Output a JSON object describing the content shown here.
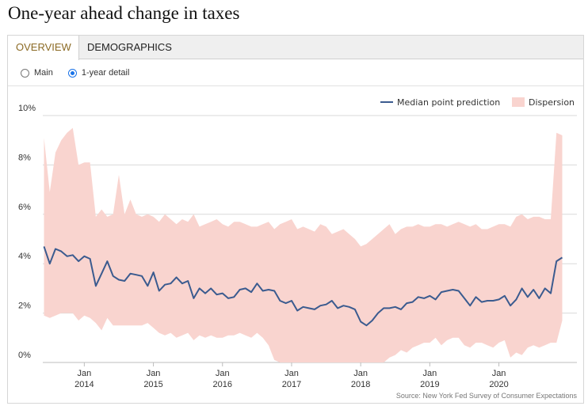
{
  "header": {
    "title": "One-year ahead change in taxes"
  },
  "tabs": [
    {
      "label": "OVERVIEW",
      "active": true
    },
    {
      "label": "DEMOGRAPHICS",
      "active": false
    }
  ],
  "radios": [
    {
      "label": "Main",
      "checked": false
    },
    {
      "label": "1-year detail",
      "checked": true
    }
  ],
  "colors": {
    "median": "#3b5b8f",
    "dispersion": "#f9d4cf",
    "accent_tab": "#8b6a24"
  },
  "chart_data": {
    "type": "area",
    "y_ticks": [
      "0%",
      "2%",
      "4%",
      "6%",
      "8%",
      "10%"
    ],
    "ylim": [
      0,
      10
    ],
    "grid": true,
    "x_month_labels": [
      "Jan",
      "Jan",
      "Jan",
      "Jan",
      "Jan",
      "Jan",
      "Jan"
    ],
    "x_year_labels": [
      "2014",
      "2015",
      "2016",
      "2017",
      "2018",
      "2019",
      "2020"
    ],
    "xlim": [
      "2013-06",
      "2021-03"
    ],
    "legend": {
      "position": "top-right",
      "median_label": "Median point prediction",
      "dispersion_label": "Dispersion"
    },
    "source": "Source: New York Fed Survey of Consumer Expectations",
    "start_month": "2013-06",
    "median": [
      4.7,
      4.0,
      4.6,
      4.5,
      4.3,
      4.35,
      4.1,
      4.3,
      4.2,
      3.1,
      3.6,
      4.1,
      3.5,
      3.35,
      3.3,
      3.6,
      3.55,
      3.5,
      3.1,
      3.65,
      2.9,
      3.15,
      3.2,
      3.45,
      3.2,
      3.3,
      2.6,
      3.0,
      2.8,
      3.0,
      2.75,
      2.8,
      2.6,
      2.65,
      2.95,
      3.0,
      2.85,
      3.2,
      2.9,
      2.95,
      2.9,
      2.5,
      2.4,
      2.5,
      2.1,
      2.25,
      2.2,
      2.15,
      2.3,
      2.35,
      2.5,
      2.2,
      2.3,
      2.25,
      2.15,
      1.65,
      1.5,
      1.7,
      2.0,
      2.2,
      2.2,
      2.25,
      2.15,
      2.4,
      2.45,
      2.65,
      2.6,
      2.7,
      2.55,
      2.85,
      2.9,
      2.95,
      2.9,
      2.6,
      2.3,
      2.65,
      2.45,
      2.5,
      2.5,
      2.55,
      2.7,
      2.3,
      2.55,
      3.0,
      2.65,
      2.95,
      2.6,
      3.0,
      2.8,
      4.1,
      4.25
    ],
    "dispersion_upper": [
      9.1,
      6.9,
      8.5,
      9.0,
      9.3,
      9.5,
      8.0,
      8.1,
      8.1,
      5.9,
      6.2,
      5.9,
      6.0,
      7.6,
      6.0,
      6.6,
      6.0,
      5.9,
      6.0,
      5.9,
      5.7,
      6.0,
      5.8,
      5.6,
      5.8,
      5.7,
      6.0,
      5.5,
      5.6,
      5.7,
      5.8,
      5.6,
      5.5,
      5.7,
      5.7,
      5.6,
      5.5,
      5.5,
      5.6,
      5.7,
      5.4,
      5.6,
      5.7,
      5.8,
      5.4,
      5.5,
      5.4,
      5.3,
      5.6,
      5.5,
      5.2,
      5.3,
      5.4,
      5.2,
      5.0,
      4.7,
      4.8,
      5.0,
      5.2,
      5.4,
      5.6,
      5.2,
      5.4,
      5.5,
      5.5,
      5.6,
      5.5,
      5.5,
      5.6,
      5.6,
      5.5,
      5.6,
      5.7,
      5.6,
      5.5,
      5.6,
      5.4,
      5.4,
      5.5,
      5.6,
      5.6,
      5.5,
      5.9,
      6.0,
      5.8,
      5.9,
      5.9,
      5.8,
      5.8,
      9.3,
      9.2
    ],
    "dispersion_lower": [
      1.9,
      1.8,
      1.9,
      2.0,
      2.0,
      2.0,
      1.7,
      1.9,
      1.8,
      1.6,
      1.3,
      1.8,
      1.5,
      1.5,
      1.5,
      1.5,
      1.5,
      1.5,
      1.6,
      1.4,
      1.2,
      1.1,
      1.2,
      1.0,
      1.1,
      1.2,
      0.9,
      1.1,
      1.0,
      1.1,
      1.0,
      1.0,
      1.1,
      1.1,
      1.2,
      1.1,
      1.0,
      1.2,
      1.0,
      0.7,
      0.1,
      0.0,
      0.0,
      0.0,
      0.0,
      0.0,
      0.0,
      0.0,
      0.0,
      0.0,
      0.0,
      0.0,
      0.0,
      0.0,
      0.0,
      0.0,
      0.0,
      0.0,
      0.0,
      0.0,
      0.2,
      0.3,
      0.5,
      0.4,
      0.6,
      0.7,
      0.8,
      0.8,
      1.0,
      0.7,
      0.9,
      1.0,
      1.0,
      0.7,
      0.6,
      0.8,
      0.8,
      0.7,
      0.6,
      0.8,
      0.9,
      0.2,
      0.4,
      0.3,
      0.6,
      0.7,
      0.6,
      0.7,
      0.8,
      0.8,
      1.7
    ]
  }
}
